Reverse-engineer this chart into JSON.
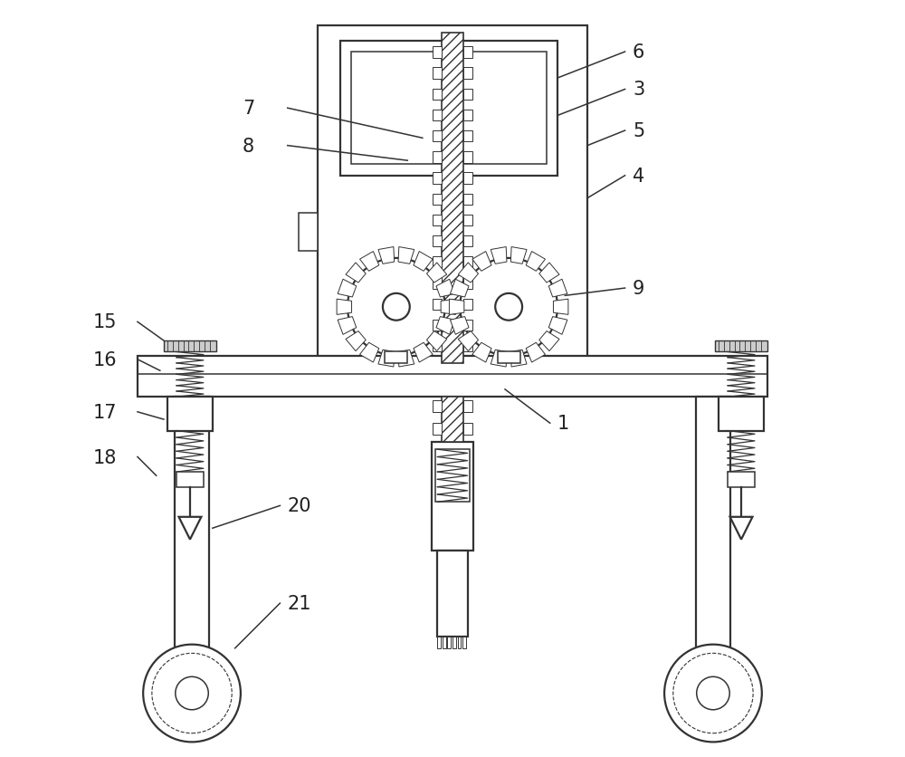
{
  "bg_color": "#ffffff",
  "lc": "#333333",
  "lw": 1.6,
  "tlw": 1.1,
  "label_fs": 15,
  "label_color": "#222222"
}
